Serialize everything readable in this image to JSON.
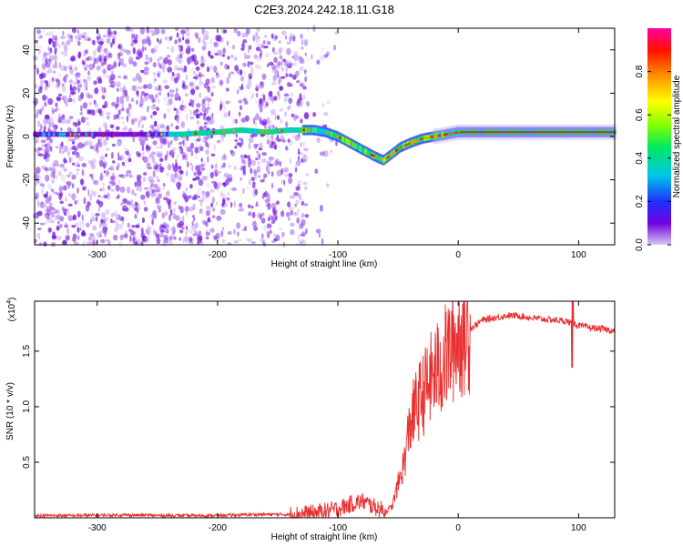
{
  "title": "C2E3.2024.242.18.11.G18",
  "chart_data": [
    {
      "type": "heatmap",
      "xlabel": "Height of straight line (km)",
      "ylabel": "Frequency (Hz)",
      "xlim": [
        -352,
        130
      ],
      "ylim": [
        -50,
        50
      ],
      "xticks": [
        -300,
        -200,
        -100,
        0,
        100
      ],
      "xtick_labels": [
        "-300",
        "-200",
        "-100",
        "0",
        "100"
      ],
      "yticks": [
        -40,
        -20,
        0,
        20,
        40
      ],
      "ytick_labels": [
        "-40",
        "-20",
        "0",
        "20",
        "40"
      ],
      "colorbar": {
        "label": "Normalized spectral amplitude",
        "range": [
          0,
          1
        ],
        "ticks": [
          0.0,
          0.2,
          0.4,
          0.6,
          0.8
        ],
        "tick_labels": [
          "0.0",
          "0.2",
          "0.4",
          "0.6",
          "0.8"
        ]
      },
      "ridge": {
        "x": [
          -352,
          -320,
          -290,
          -260,
          -230,
          -200,
          -180,
          -160,
          -140,
          -120,
          -110,
          -100,
          -90,
          -80,
          -70,
          -62,
          -55,
          -48,
          -40,
          -30,
          -20,
          -10,
          0,
          20,
          50,
          80,
          100,
          130
        ],
        "y": [
          1,
          1,
          1,
          1,
          1,
          2,
          3,
          2,
          3,
          3,
          2,
          0,
          -3,
          -6,
          -9,
          -11,
          -8,
          -5,
          -3,
          -1,
          0,
          1,
          2,
          2,
          2,
          2,
          2,
          2
        ]
      }
    },
    {
      "type": "line",
      "xlabel": "Height of straight line (km)",
      "ylabel": "SNR (10 * v/v)",
      "yscale_label": "(x10",
      "yscale_exp": "4",
      "yscale_close": ")",
      "xlim": [
        -352,
        130
      ],
      "ylim": [
        0,
        1.95
      ],
      "xticks": [
        -300,
        -200,
        -100,
        0,
        100
      ],
      "xtick_labels": [
        "-300",
        "-200",
        "-100",
        "0",
        "100"
      ],
      "yticks": [
        0.5,
        1.0,
        1.5
      ],
      "ytick_labels": [
        "0.5",
        "1.0",
        "1.5"
      ],
      "series": [
        {
          "color": "#e83030",
          "x": [
            -352,
            -320,
            -280,
            -240,
            -200,
            -170,
            -140,
            -120,
            -100,
            -90,
            -80,
            -70,
            -60,
            -55,
            -50,
            -45,
            -40,
            -35,
            -30,
            -25,
            -20,
            -15,
            -10,
            -5,
            0,
            10,
            20,
            30,
            40,
            50,
            60,
            70,
            80,
            90,
            95,
            100,
            110,
            120,
            130
          ],
          "y": [
            0.02,
            0.02,
            0.025,
            0.02,
            0.02,
            0.03,
            0.03,
            0.04,
            0.08,
            0.12,
            0.15,
            0.1,
            0.06,
            0.1,
            0.3,
            0.5,
            0.85,
            1.0,
            1.1,
            1.2,
            1.3,
            1.35,
            1.45,
            1.55,
            1.62,
            1.7,
            1.78,
            1.8,
            1.82,
            1.82,
            1.8,
            1.79,
            1.78,
            1.77,
            1.75,
            1.73,
            1.71,
            1.7,
            1.68
          ]
        }
      ]
    }
  ]
}
